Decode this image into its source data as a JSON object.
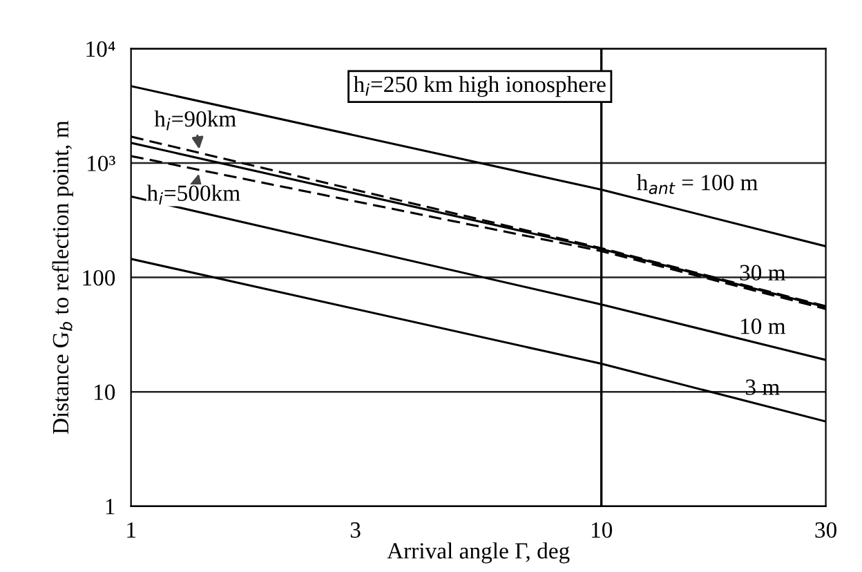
{
  "chart_data": {
    "type": "line",
    "xlabel": "Arrival angle Γ, deg",
    "ylabel": "Distance G$_{b}$ to reflection point, m",
    "annotations": [
      "h$_{i}$=250 km high ionosphere"
    ],
    "log": "xy",
    "grid": "y",
    "legend": false,
    "marker": "none",
    "xlim": [
      1,
      30
    ],
    "xticks": [
      1,
      3,
      10,
      30
    ],
    "ylim": [
      1,
      10000
    ],
    "yticks": [
      1,
      10,
      100,
      {
        "value": 1000,
        "label": "10³"
      },
      {
        "value": 10000,
        "label": "10⁴"
      }
    ],
    "ref_lines": [
      {
        "axis": "x",
        "value": 10,
        "label": null,
        "color": "#000000"
      }
    ],
    "x": [
      1,
      10,
      30
    ],
    "series": [
      {
        "name": "h$_{ant}$ = 100 m",
        "color": "#000000",
        "line_style": "solid",
        "values": [
          4700,
          585,
          187
        ]
      },
      {
        "name": "30 m",
        "color": "#000000",
        "line_style": "solid",
        "values": [
          1500,
          177,
          55
        ]
      },
      {
        "name": "h$_{i}$=90km",
        "color": "#000000",
        "line_style": "dashed",
        "values": [
          1700,
          180,
          56
        ]
      },
      {
        "name": "h$_{i}$=500km",
        "color": "#000000",
        "line_style": "dashed",
        "values": [
          1150,
          170,
          53
        ]
      },
      {
        "name": "10 m",
        "color": "#000000",
        "line_style": "solid",
        "values": [
          510,
          58,
          19
        ]
      },
      {
        "name": "3 m",
        "color": "#000000",
        "line_style": "solid",
        "values": [
          145,
          17.6,
          5.5
        ]
      }
    ]
  }
}
